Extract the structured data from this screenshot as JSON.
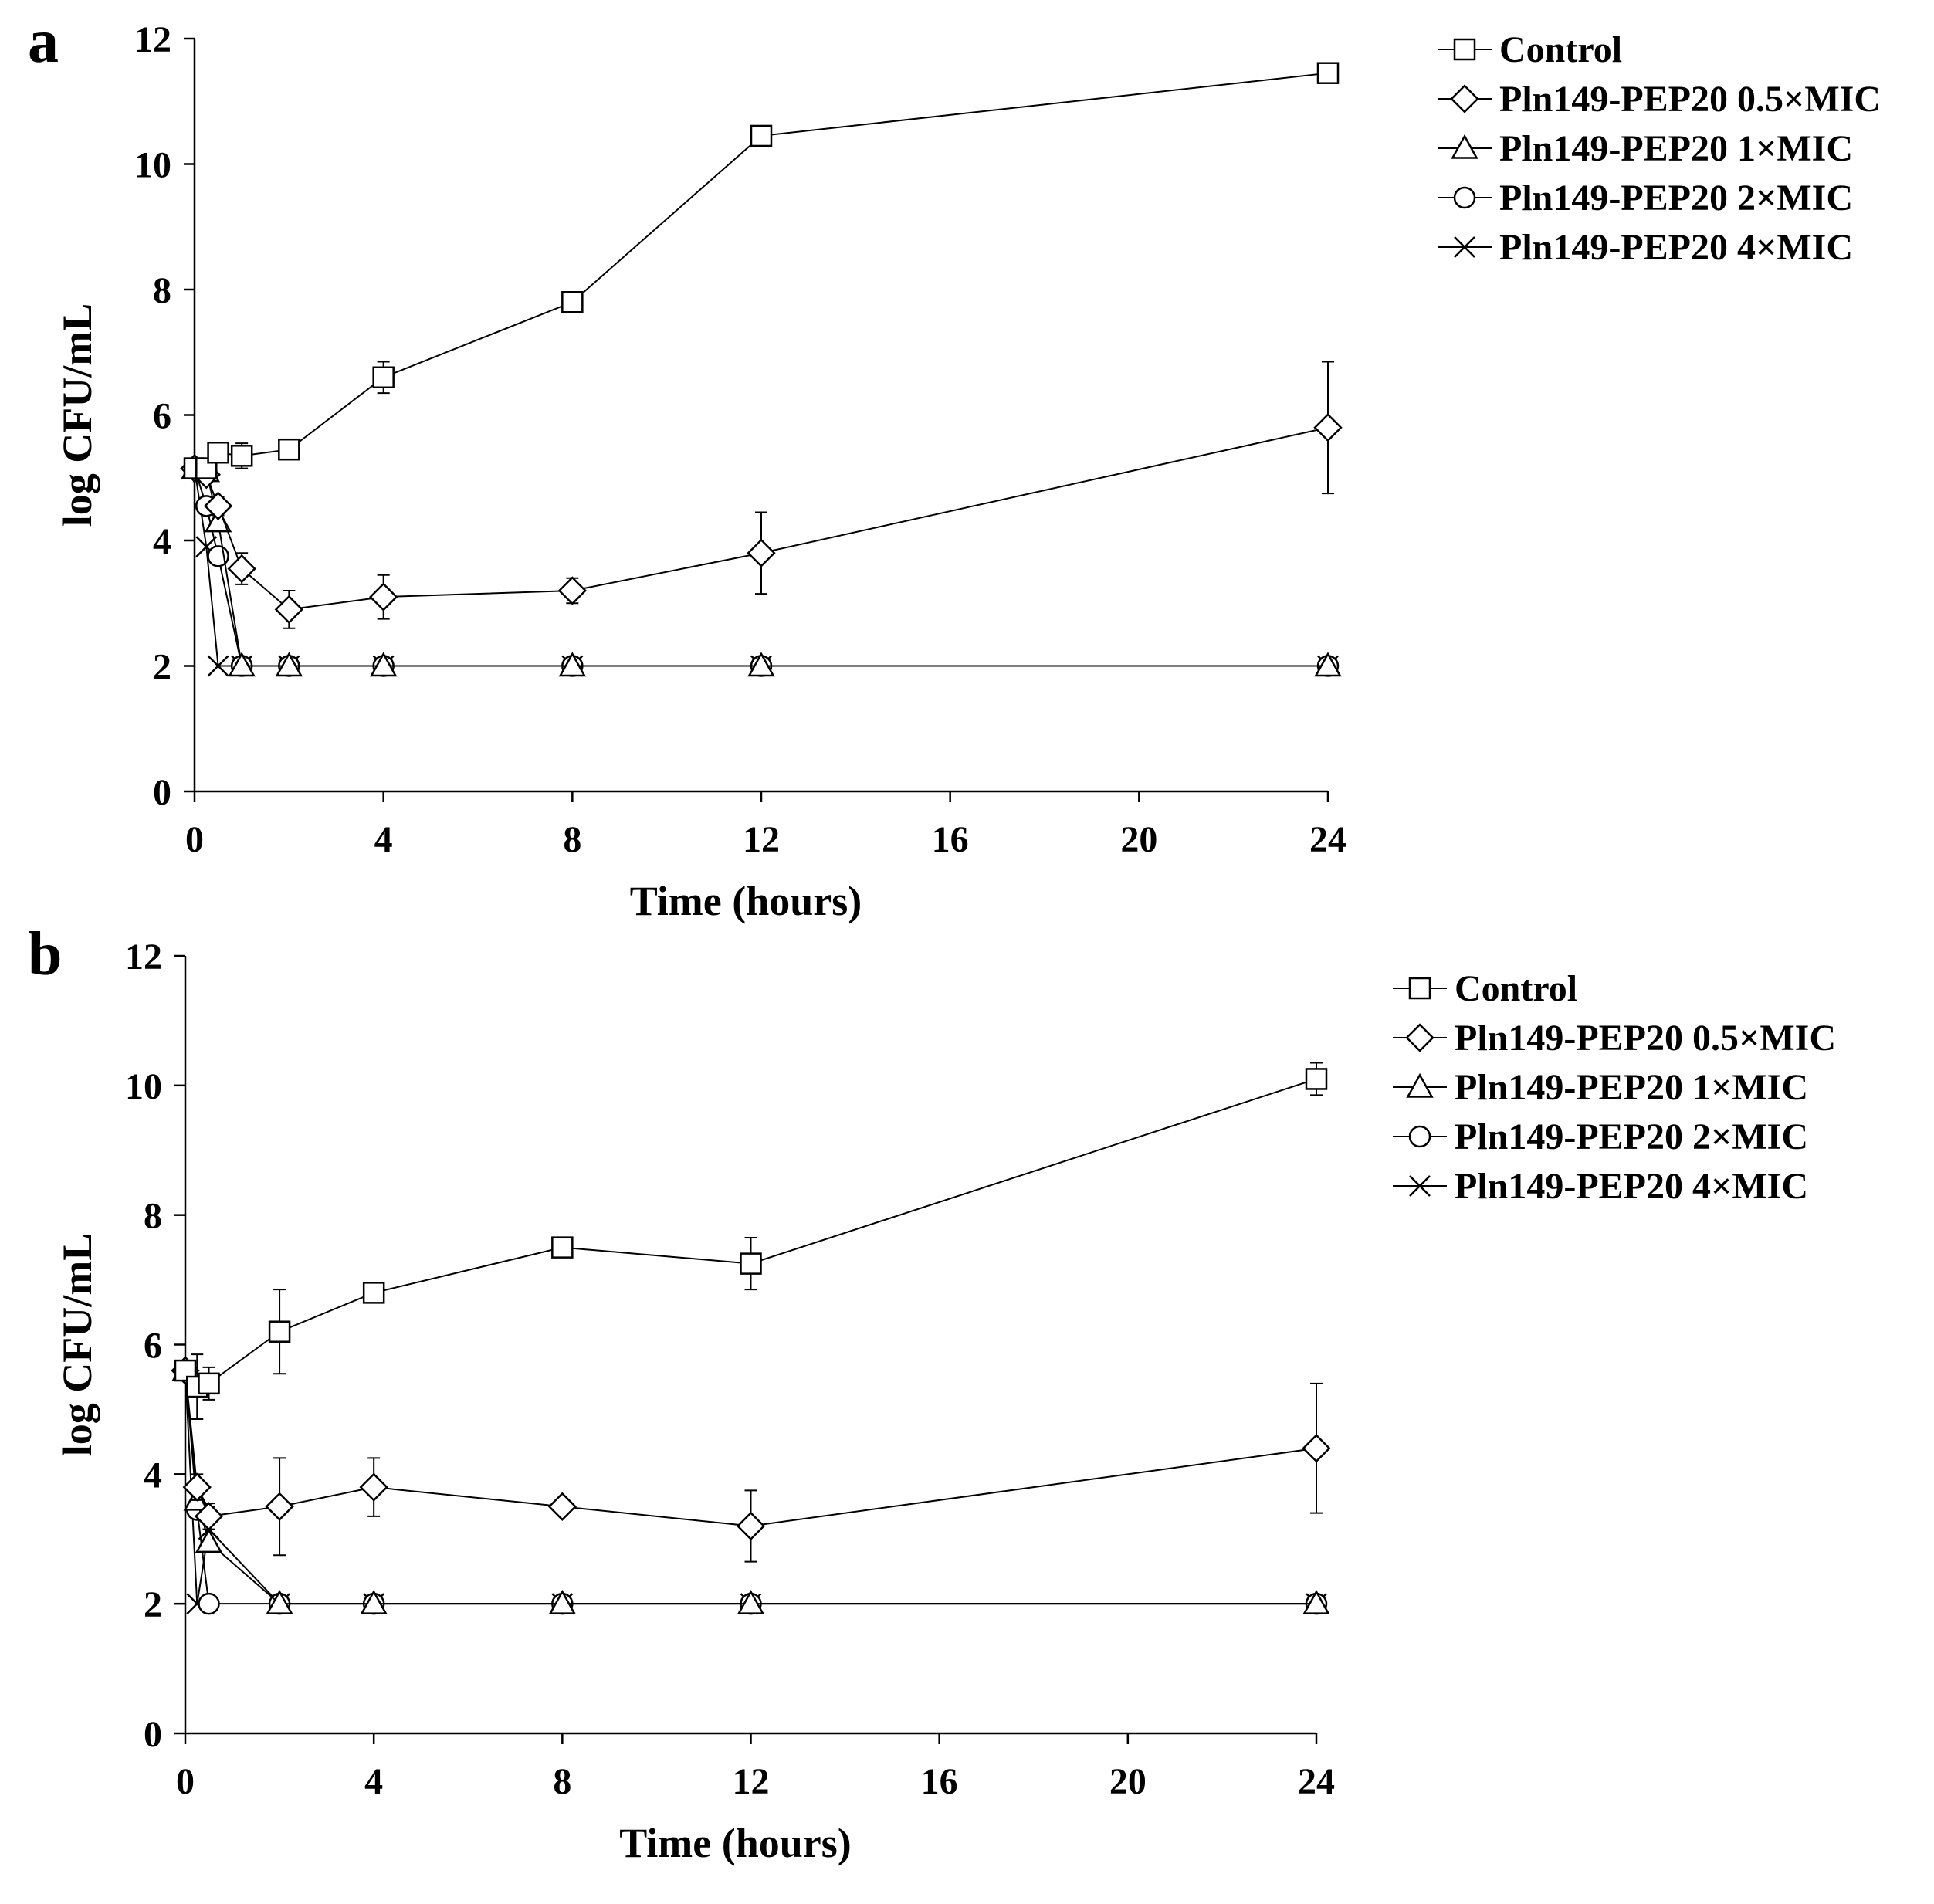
{
  "chart_data": [
    {
      "type": "line",
      "panel_label": "a",
      "xlabel": "Time (hours)",
      "ylabel": "log CFU/mL",
      "xlim": [
        0,
        24
      ],
      "ylim": [
        0,
        12
      ],
      "xticks": [
        "0",
        "4",
        "8",
        "12",
        "16",
        "20",
        "24"
      ],
      "yticks": [
        "0",
        "2",
        "4",
        "6",
        "8",
        "10",
        "12"
      ],
      "legend": "top-right",
      "series": [
        {
          "name": "Control",
          "marker": "square",
          "x": [
            0,
            0.25,
            0.5,
            1,
            2,
            4,
            8,
            12,
            24
          ],
          "y": [
            5.15,
            5.15,
            5.4,
            5.35,
            5.45,
            6.6,
            7.8,
            10.45,
            11.45
          ],
          "err": [
            0,
            0,
            0.1,
            0.2,
            0.15,
            0.25,
            0.15,
            0.1,
            0.1
          ]
        },
        {
          "name": "Pln149-PEP20 0.5×MIC",
          "marker": "diamond",
          "x": [
            0,
            0.25,
            0.5,
            1,
            2,
            4,
            8,
            12,
            24
          ],
          "y": [
            5.15,
            5.05,
            4.55,
            3.55,
            2.9,
            3.1,
            3.2,
            3.8,
            5.8
          ],
          "err": [
            0,
            0.1,
            0.15,
            0.25,
            0.3,
            0.35,
            0.2,
            0.65,
            1.05
          ]
        },
        {
          "name": "Pln149-PEP20 1×MIC",
          "marker": "triangle",
          "x": [
            0,
            0.25,
            0.5,
            1,
            2,
            4,
            8,
            12,
            24
          ],
          "y": [
            5.15,
            5.1,
            4.3,
            2,
            2,
            2,
            2,
            2,
            2
          ],
          "err": [
            0,
            0,
            0,
            0,
            0,
            0,
            0,
            0,
            0
          ]
        },
        {
          "name": "Pln149-PEP20 2×MIC",
          "marker": "circle",
          "x": [
            0,
            0.25,
            0.5,
            1,
            2,
            4,
            8,
            12,
            24
          ],
          "y": [
            5.15,
            4.55,
            3.75,
            2,
            2,
            2,
            2,
            2,
            2
          ],
          "err": [
            0,
            0,
            0,
            0,
            0,
            0,
            0,
            0,
            0
          ]
        },
        {
          "name": "Pln149-PEP20 4×MIC",
          "marker": "x",
          "x": [
            0,
            0.25,
            0.5,
            1,
            2,
            4,
            8,
            12,
            24
          ],
          "y": [
            5.15,
            3.9,
            2,
            2,
            2,
            2,
            2,
            2,
            2
          ],
          "err": [
            0,
            0,
            0,
            0,
            0,
            0,
            0,
            0,
            0
          ]
        }
      ]
    },
    {
      "type": "line",
      "panel_label": "b",
      "xlabel": "Time (hours)",
      "ylabel": "log CFU/mL",
      "xlim": [
        0,
        24
      ],
      "ylim": [
        0,
        12
      ],
      "xticks": [
        "0",
        "4",
        "8",
        "12",
        "16",
        "20",
        "24"
      ],
      "yticks": [
        "0",
        "2",
        "4",
        "6",
        "8",
        "10",
        "12"
      ],
      "legend": "top-right",
      "series": [
        {
          "name": "Control",
          "marker": "square",
          "x": [
            0,
            0.25,
            0.5,
            2,
            4,
            8,
            12,
            24
          ],
          "y": [
            5.6,
            5.35,
            5.4,
            6.2,
            6.8,
            7.5,
            7.25,
            10.1
          ],
          "err": [
            0,
            0.5,
            0.25,
            0.65,
            0.1,
            0.15,
            0.4,
            0.25
          ]
        },
        {
          "name": "Pln149-PEP20 0.5×MIC",
          "marker": "diamond",
          "x": [
            0,
            0.25,
            0.5,
            2,
            4,
            8,
            12,
            24
          ],
          "y": [
            5.6,
            3.8,
            3.35,
            3.5,
            3.8,
            3.5,
            3.2,
            4.4
          ],
          "err": [
            0,
            0.2,
            0.2,
            0.75,
            0.45,
            0.1,
            0.55,
            1.0
          ]
        },
        {
          "name": "Pln149-PEP20 1×MIC",
          "marker": "triangle",
          "x": [
            0,
            0.25,
            0.5,
            2,
            4,
            8,
            12,
            24
          ],
          "y": [
            5.6,
            3.6,
            2.95,
            2,
            2,
            2,
            2,
            2
          ],
          "err": [
            0,
            0,
            0,
            0,
            0,
            0,
            0,
            0
          ]
        },
        {
          "name": "Pln149-PEP20 2×MIC",
          "marker": "circle",
          "x": [
            0,
            0.25,
            0.5,
            2,
            4,
            8,
            12,
            24
          ],
          "y": [
            5.6,
            3.45,
            2,
            2,
            2,
            2,
            2,
            2
          ],
          "err": [
            0,
            0,
            0,
            0,
            0,
            0,
            0,
            0
          ]
        },
        {
          "name": "Pln149-PEP20 4×MIC",
          "marker": "x",
          "x": [
            0,
            0.25,
            0.5,
            2,
            4,
            8,
            12,
            24
          ],
          "y": [
            5.6,
            2,
            3.15,
            2,
            2,
            2,
            2,
            2
          ],
          "err": [
            0,
            0,
            0.35,
            0,
            0,
            0,
            0,
            0
          ]
        }
      ]
    }
  ]
}
